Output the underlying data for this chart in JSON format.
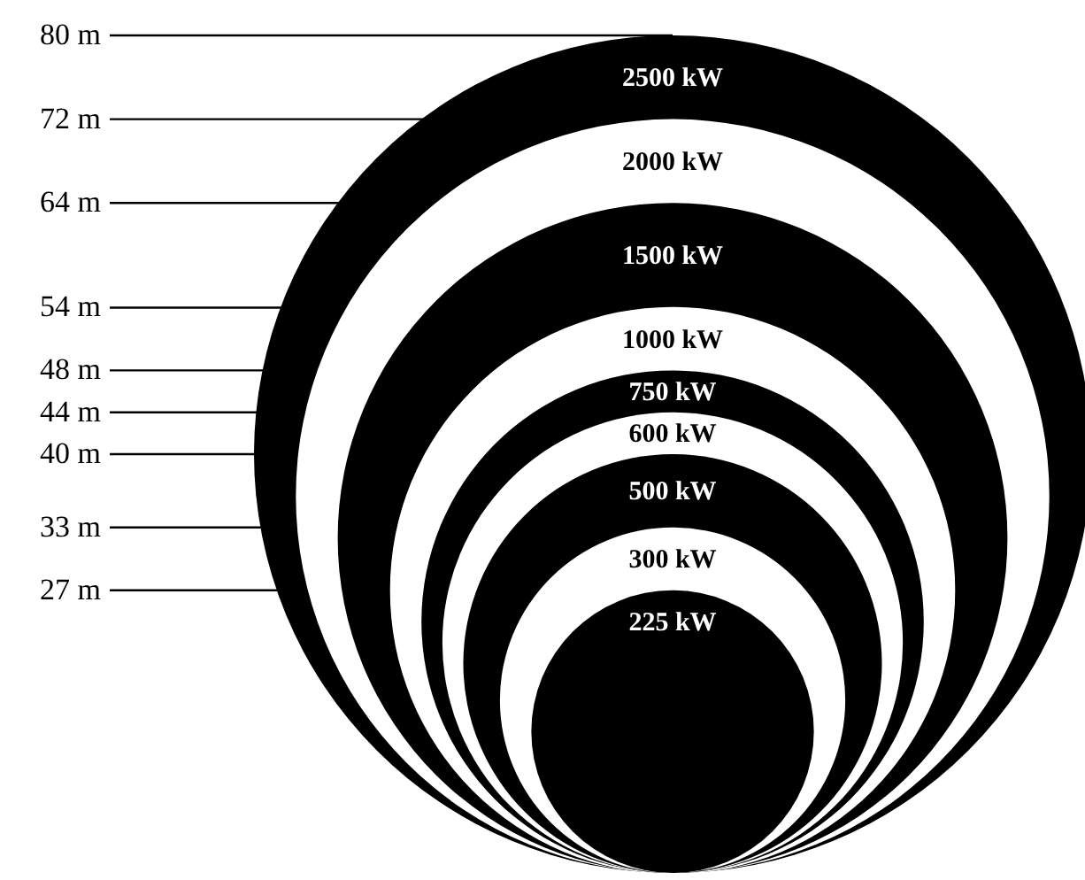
{
  "chart_data": {
    "type": "other",
    "categories": [
      "2500 kW",
      "2000 kW",
      "1500 kW",
      "1000 kW",
      "750 kW",
      "600 kW",
      "500 kW",
      "300 kW",
      "225 kW"
    ],
    "values": [
      80,
      72,
      64,
      54,
      48,
      44,
      40,
      33,
      27
    ],
    "value_labels": [
      "80 m",
      "72 m",
      "64 m",
      "54 m",
      "48 m",
      "44 m",
      "40 m",
      "33 m",
      "27 m"
    ],
    "colors": [
      "#000000",
      "#ffffff",
      "#000000",
      "#ffffff",
      "#000000",
      "#ffffff",
      "#000000",
      "#ffffff",
      "#000000"
    ]
  }
}
